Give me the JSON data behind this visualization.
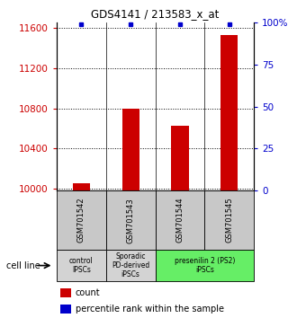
{
  "title": "GDS4141 / 213583_x_at",
  "samples": [
    "GSM701542",
    "GSM701543",
    "GSM701544",
    "GSM701545"
  ],
  "count_values": [
    10055,
    10800,
    10625,
    11530
  ],
  "percentile_values": [
    99,
    99,
    99,
    99
  ],
  "ylim_left": [
    9980,
    11660
  ],
  "ylim_right": [
    0,
    100
  ],
  "yticks_left": [
    10000,
    10400,
    10800,
    11200,
    11600
  ],
  "yticks_right": [
    0,
    25,
    50,
    75,
    100
  ],
  "ytick_labels_right": [
    "0",
    "25",
    "50",
    "75",
    "100%"
  ],
  "bar_color": "#cc0000",
  "dot_color": "#0000cc",
  "bar_width": 0.35,
  "groups": [
    {
      "label": "control\nIPSCs",
      "indices": [
        0
      ],
      "color": "#d3d3d3"
    },
    {
      "label": "Sporadic\nPD-derived\niPSCs",
      "indices": [
        1
      ],
      "color": "#d3d3d3"
    },
    {
      "label": "presenilin 2 (PS2)\niPSCs",
      "indices": [
        2,
        3
      ],
      "color": "#66ee66"
    }
  ],
  "cell_line_label": "cell line",
  "legend_count_label": "count",
  "legend_percentile_label": "percentile rank within the sample",
  "sample_box_color": "#c8c8c8"
}
